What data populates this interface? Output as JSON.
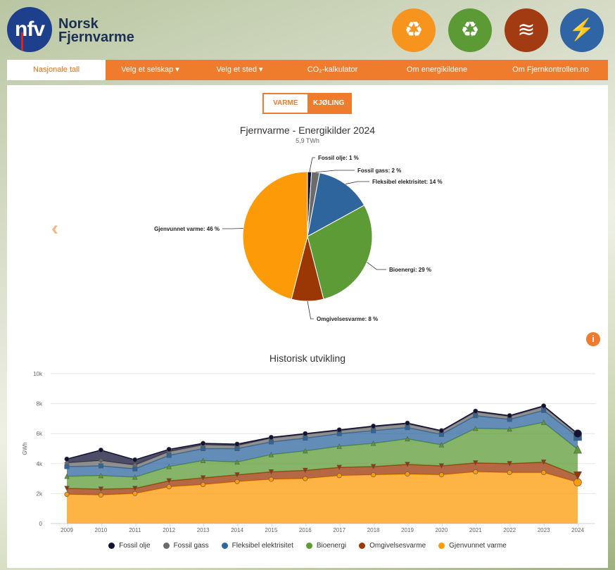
{
  "header": {
    "logo_text": "nfv",
    "brand_line1": "Norsk",
    "brand_line2": "Fjernvarme",
    "icons": [
      {
        "name": "recycle-icon",
        "color": "#f7941d",
        "glyph": "♻"
      },
      {
        "name": "bio-recycle-icon",
        "color": "#5b9a34",
        "glyph": "♻"
      },
      {
        "name": "heat-waves-icon",
        "color": "#a23a12",
        "glyph": "≋"
      },
      {
        "name": "lightning-icon",
        "color": "#2f65a5",
        "glyph": "⚡"
      }
    ]
  },
  "nav": {
    "items": [
      {
        "label": "Nasjonale tall",
        "active": true
      },
      {
        "label": "Velg et selskap ▾",
        "active": false
      },
      {
        "label": "Velg et sted ▾",
        "active": false
      },
      {
        "label": "CO₂-kalkulator",
        "active": false
      },
      {
        "label": "Om energikildene",
        "active": false
      },
      {
        "label": "Om Fjernkontrollen.no",
        "active": false
      }
    ]
  },
  "toggle": {
    "varme": "VARME",
    "kjoling": "KJØLING"
  },
  "chart_data": [
    {
      "type": "pie",
      "title": "Fjernvarme - Energikilder 2024",
      "subtitle": "5,9 TWh",
      "slices": [
        {
          "name": "Fossil olje",
          "value": 1,
          "label": "Fossil olje: 1 %",
          "color": "#121236"
        },
        {
          "name": "Fossil gass",
          "value": 2,
          "label": "Fossil gass: 2 %",
          "color": "#6b6b6b"
        },
        {
          "name": "Fleksibel elektrisitet",
          "value": 14,
          "label": "Fleksibel elektrisitet: 14 %",
          "color": "#2f659d"
        },
        {
          "name": "Bioenergi",
          "value": 29,
          "label": "Bioenergi: 29 %",
          "color": "#5d9b36"
        },
        {
          "name": "Omgivelsesvarme",
          "value": 8,
          "label": "Omgivelsesvarme: 8 %",
          "color": "#9b3705"
        },
        {
          "name": "Gjenvunnet varme",
          "value": 46,
          "label": "Gjenvunnet varme: 46 %",
          "color": "#fd9a07"
        }
      ]
    },
    {
      "type": "area",
      "stacked": true,
      "title": "Historisk utvikling",
      "ylabel": "GWh",
      "ylim": [
        0,
        10000
      ],
      "yticks": [
        "0",
        "2k",
        "4k",
        "6k",
        "8k",
        "10k"
      ],
      "x": [
        "2009",
        "2010",
        "2011",
        "2012",
        "2013",
        "2014",
        "2015",
        "2016",
        "2017",
        "2018",
        "2019",
        "2020",
        "2021",
        "2022",
        "2023",
        "2024"
      ],
      "series": [
        {
          "name": "Gjenvunnet varme",
          "color": "#fd9a07",
          "values": [
            1950,
            1900,
            2000,
            2450,
            2600,
            2800,
            2950,
            3000,
            3200,
            3250,
            3300,
            3250,
            3450,
            3400,
            3400,
            2750
          ]
        },
        {
          "name": "Omgivelsesvarme",
          "color": "#9b3705",
          "values": [
            400,
            400,
            350,
            400,
            450,
            450,
            500,
            550,
            550,
            550,
            650,
            600,
            600,
            600,
            700,
            450
          ]
        },
        {
          "name": "Bioenergi",
          "color": "#5d9b36",
          "values": [
            800,
            900,
            750,
            950,
            1150,
            850,
            1150,
            1300,
            1400,
            1550,
            1700,
            1400,
            2300,
            2300,
            2650,
            1750
          ]
        },
        {
          "name": "Fleksibel elektrisitet",
          "color": "#2f659d",
          "values": [
            650,
            650,
            550,
            750,
            800,
            900,
            850,
            850,
            850,
            850,
            750,
            700,
            850,
            650,
            800,
            850
          ]
        },
        {
          "name": "Fossil gass",
          "color": "#6b6b6b",
          "values": [
            250,
            350,
            250,
            250,
            250,
            200,
            250,
            250,
            200,
            250,
            250,
            200,
            250,
            200,
            250,
            150
          ]
        },
        {
          "name": "Fossil olje",
          "color": "#121236",
          "values": [
            250,
            700,
            350,
            150,
            100,
            100,
            50,
            50,
            50,
            50,
            50,
            50,
            50,
            50,
            50,
            50
          ]
        }
      ],
      "legend": [
        "Fossil olje",
        "Fossil gass",
        "Fleksibel elektrisitet",
        "Bioenergi",
        "Omgivelsesvarme",
        "Gjenvunnet varme"
      ],
      "legend_colors": [
        "#121236",
        "#6b6b6b",
        "#2f659d",
        "#5d9b36",
        "#9b3705",
        "#fd9a07"
      ]
    }
  ]
}
